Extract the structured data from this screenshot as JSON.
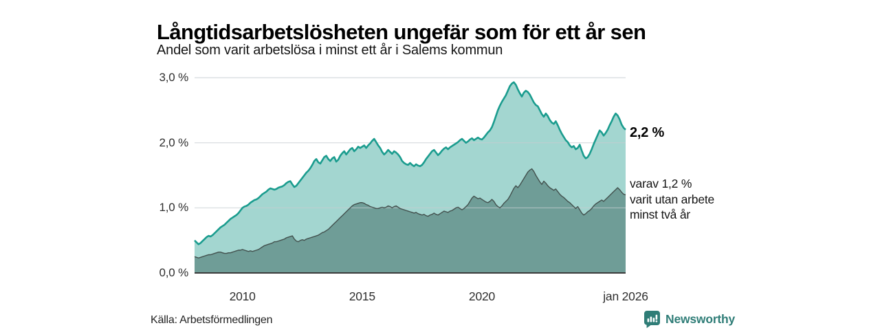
{
  "header": {
    "title": "Långtidsarbetslösheten ungefär som för ett år sen",
    "subtitle": "Andel som varit arbetslösa i minst ett år i Salems kommun"
  },
  "chart_data": {
    "type": "area",
    "title": "Långtidsarbetslösheten ungefär som för ett år sen",
    "subtitle": "Andel som varit arbetslösa i minst ett år i Salems kommun",
    "unit": "%",
    "x_domain": [
      2008,
      2026.0
    ],
    "x_step_months": 1,
    "ylim": [
      0,
      3.0
    ],
    "grid": "horizontal",
    "x_ticks": [
      {
        "label": "2010",
        "year": 2010
      },
      {
        "label": "2015",
        "year": 2015
      },
      {
        "label": "2020",
        "year": 2020
      },
      {
        "label": "jan 2026",
        "year": 2026
      }
    ],
    "y_ticks": [
      {
        "label": "0,0 %",
        "value": 0
      },
      {
        "label": "1,0 %",
        "value": 1
      },
      {
        "label": "2,0 %",
        "value": 2
      },
      {
        "label": "3,0 %",
        "value": 3
      }
    ],
    "series": [
      {
        "name": "arbetslösa minst ett år",
        "latest_value": 2.2,
        "values": [
          0.5,
          0.47,
          0.44,
          0.46,
          0.49,
          0.52,
          0.55,
          0.57,
          0.56,
          0.58,
          0.61,
          0.64,
          0.67,
          0.7,
          0.72,
          0.74,
          0.77,
          0.8,
          0.83,
          0.85,
          0.87,
          0.89,
          0.92,
          0.96,
          1.0,
          1.02,
          1.03,
          1.05,
          1.08,
          1.1,
          1.12,
          1.13,
          1.15,
          1.18,
          1.21,
          1.23,
          1.25,
          1.28,
          1.3,
          1.29,
          1.28,
          1.29,
          1.31,
          1.32,
          1.33,
          1.35,
          1.38,
          1.4,
          1.41,
          1.36,
          1.32,
          1.34,
          1.38,
          1.42,
          1.46,
          1.5,
          1.54,
          1.57,
          1.61,
          1.66,
          1.72,
          1.75,
          1.7,
          1.68,
          1.73,
          1.78,
          1.8,
          1.75,
          1.72,
          1.76,
          1.78,
          1.71,
          1.74,
          1.8,
          1.84,
          1.87,
          1.82,
          1.86,
          1.9,
          1.92,
          1.87,
          1.9,
          1.94,
          1.92,
          1.94,
          1.96,
          1.92,
          1.96,
          1.99,
          2.03,
          2.06,
          2.01,
          1.96,
          1.92,
          1.86,
          1.82,
          1.85,
          1.89,
          1.86,
          1.83,
          1.87,
          1.85,
          1.82,
          1.78,
          1.72,
          1.69,
          1.67,
          1.66,
          1.69,
          1.66,
          1.64,
          1.67,
          1.65,
          1.64,
          1.66,
          1.7,
          1.75,
          1.79,
          1.83,
          1.87,
          1.89,
          1.85,
          1.81,
          1.84,
          1.88,
          1.91,
          1.93,
          1.9,
          1.93,
          1.95,
          1.97,
          1.99,
          2.01,
          2.04,
          2.06,
          2.03,
          2.0,
          2.02,
          2.05,
          2.07,
          2.04,
          2.06,
          2.08,
          2.06,
          2.05,
          2.08,
          2.12,
          2.16,
          2.19,
          2.24,
          2.32,
          2.41,
          2.5,
          2.57,
          2.63,
          2.68,
          2.73,
          2.8,
          2.87,
          2.91,
          2.93,
          2.89,
          2.82,
          2.76,
          2.71,
          2.77,
          2.8,
          2.78,
          2.74,
          2.68,
          2.62,
          2.58,
          2.56,
          2.5,
          2.44,
          2.4,
          2.45,
          2.41,
          2.35,
          2.31,
          2.29,
          2.33,
          2.27,
          2.2,
          2.14,
          2.09,
          2.04,
          2.01,
          1.96,
          1.93,
          1.95,
          1.9,
          1.92,
          1.97,
          1.88,
          1.8,
          1.76,
          1.78,
          1.83,
          1.9,
          1.98,
          2.05,
          2.12,
          2.19,
          2.16,
          2.11,
          2.15,
          2.2,
          2.27,
          2.33,
          2.4,
          2.45,
          2.42,
          2.36,
          2.28,
          2.23,
          2.2
        ]
      },
      {
        "name": "varav utan arbete minst två år",
        "latest_value": 1.2,
        "values": [
          0.25,
          0.24,
          0.23,
          0.24,
          0.25,
          0.26,
          0.27,
          0.28,
          0.28,
          0.29,
          0.3,
          0.31,
          0.32,
          0.32,
          0.31,
          0.3,
          0.3,
          0.31,
          0.31,
          0.32,
          0.33,
          0.34,
          0.35,
          0.35,
          0.36,
          0.35,
          0.34,
          0.33,
          0.34,
          0.33,
          0.34,
          0.35,
          0.36,
          0.38,
          0.4,
          0.42,
          0.43,
          0.44,
          0.45,
          0.46,
          0.48,
          0.48,
          0.49,
          0.5,
          0.51,
          0.52,
          0.54,
          0.55,
          0.56,
          0.57,
          0.52,
          0.49,
          0.48,
          0.5,
          0.51,
          0.5,
          0.52,
          0.53,
          0.54,
          0.55,
          0.56,
          0.57,
          0.58,
          0.6,
          0.62,
          0.63,
          0.65,
          0.67,
          0.7,
          0.73,
          0.76,
          0.79,
          0.82,
          0.85,
          0.88,
          0.91,
          0.94,
          0.97,
          1.0,
          1.03,
          1.05,
          1.06,
          1.07,
          1.08,
          1.08,
          1.07,
          1.05,
          1.04,
          1.02,
          1.01,
          1.0,
          0.99,
          0.99,
          1.0,
          1.01,
          1.0,
          1.01,
          1.03,
          1.02,
          1.0,
          1.02,
          1.03,
          1.01,
          0.99,
          0.98,
          0.97,
          0.96,
          0.95,
          0.94,
          0.93,
          0.92,
          0.93,
          0.91,
          0.9,
          0.89,
          0.9,
          0.88,
          0.87,
          0.89,
          0.9,
          0.92,
          0.9,
          0.89,
          0.91,
          0.93,
          0.95,
          0.94,
          0.93,
          0.95,
          0.96,
          0.98,
          1.0,
          1.01,
          0.99,
          0.97,
          0.99,
          1.02,
          1.05,
          1.1,
          1.15,
          1.18,
          1.16,
          1.14,
          1.15,
          1.13,
          1.11,
          1.09,
          1.08,
          1.1,
          1.13,
          1.1,
          1.05,
          1.02,
          1.0,
          1.03,
          1.07,
          1.1,
          1.13,
          1.18,
          1.24,
          1.3,
          1.34,
          1.31,
          1.35,
          1.4,
          1.45,
          1.5,
          1.55,
          1.58,
          1.6,
          1.56,
          1.5,
          1.45,
          1.4,
          1.36,
          1.41,
          1.38,
          1.34,
          1.31,
          1.29,
          1.27,
          1.29,
          1.25,
          1.21,
          1.18,
          1.16,
          1.13,
          1.1,
          1.08,
          1.05,
          1.02,
          0.99,
          1.02,
          0.97,
          0.92,
          0.89,
          0.91,
          0.94,
          0.96,
          0.99,
          1.03,
          1.06,
          1.08,
          1.1,
          1.12,
          1.1,
          1.13,
          1.16,
          1.19,
          1.22,
          1.25,
          1.28,
          1.31,
          1.28,
          1.24,
          1.21,
          1.2
        ]
      }
    ],
    "end_labels": {
      "total": "2,2 %",
      "sub_line1": "varav 1,2 %",
      "sub_line2": "varit utan arbete",
      "sub_line3": "minst två år"
    }
  },
  "colors": {
    "background": "#ffffff",
    "line_total": "#1a9c8e",
    "fill_total": "#a3d6d0",
    "line_two_years": "#42504d",
    "fill_two_years": "#6f9d97",
    "grid": "#c6ccd2",
    "axis_line": "#3b3b3b",
    "brand_teal": "#2f7d77"
  },
  "footer": {
    "source": "Källa: Arbetsförmedlingen",
    "brand": "Newsworthy"
  }
}
